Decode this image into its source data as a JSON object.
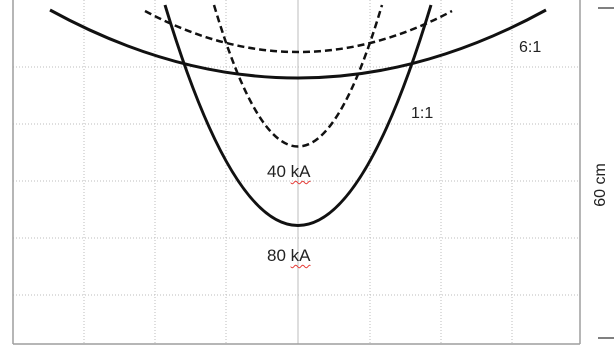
{
  "labels": {
    "ratio_6_1": "6:1",
    "ratio_1_1": "1:1",
    "value_40": {
      "number": "40",
      "unit": "kA"
    },
    "value_80": {
      "number": "80",
      "unit": "kA"
    },
    "side_scale": "60 cm"
  },
  "colors": {
    "grid": "#bdbdbd",
    "frame": "#9e9e9e",
    "curve": "#111111",
    "spellcheck": "#e53935"
  }
}
